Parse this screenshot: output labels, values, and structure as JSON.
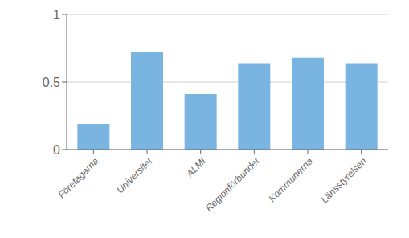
{
  "chart_data": {
    "type": "bar",
    "categories": [
      "Företagarna",
      "Universitet",
      "ALMI",
      "Regionförbundet",
      "Kommunerna",
      "Länsstyrelsen"
    ],
    "values": [
      0.19,
      0.72,
      0.41,
      0.64,
      0.68,
      0.64
    ],
    "color": "#7ab4e0",
    "ylim": [
      0,
      1.0
    ],
    "yticks": [
      0,
      0.5,
      1
    ],
    "grid": true
  }
}
